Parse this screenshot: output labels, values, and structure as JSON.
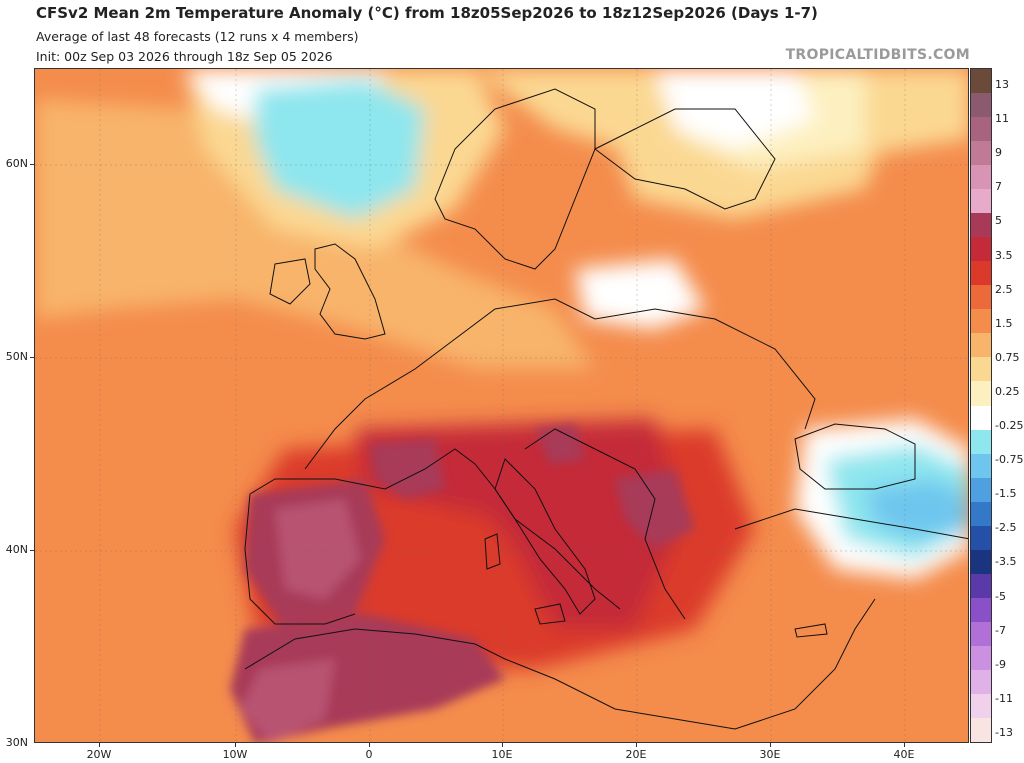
{
  "header": {
    "title": "CFSv2 Mean 2m Temperature Anomaly (°C) from 18z05Sep2026 to 18z12Sep2026 (Days 1-7)",
    "subtitle": "Average of last 48 forecasts (12 runs x 4 members)",
    "init": "Init: 00z Sep 03 2026 through 18z Sep 05 2026",
    "watermark": "TROPICALTIDBITS.COM"
  },
  "axes": {
    "lat_labels": [
      "60N",
      "50N",
      "40N",
      "30N"
    ],
    "lon_labels": [
      "20W",
      "10W",
      "0",
      "10E",
      "20E",
      "30E",
      "40E"
    ]
  },
  "colorbar": {
    "labels": [
      "13",
      "11",
      "9",
      "7",
      "5",
      "3.5",
      "2.5",
      "1.5",
      "0.75",
      "0.25",
      "-0.25",
      "-0.75",
      "-1.5",
      "-2.5",
      "-3.5",
      "-5",
      "-7",
      "-9",
      "-11",
      "-13"
    ],
    "colors": [
      "#6b4a3a",
      "#8c5a6e",
      "#a8647e",
      "#c07a96",
      "#d894b4",
      "#e7aacb",
      "#a83a58",
      "#c42a38",
      "#db3a2a",
      "#ec6a3a",
      "#f48c4c",
      "#f8b46a",
      "#fbd892",
      "#fdf0c0",
      "#ffffff",
      "#8ee6ee",
      "#6ec6ee",
      "#4ea0e0",
      "#3478c8",
      "#2450a8",
      "#1a3480",
      "#5a3aa8",
      "#8a50c8",
      "#b070d8",
      "#cc90e0",
      "#e0b0e8",
      "#f0d0ea",
      "#f8e4e0"
    ]
  },
  "colors": {
    "warm_background": "#f48c4c",
    "extreme_heat": "#a83a58",
    "near_zero": "#ffffff",
    "cool": "#8ee6ee"
  }
}
